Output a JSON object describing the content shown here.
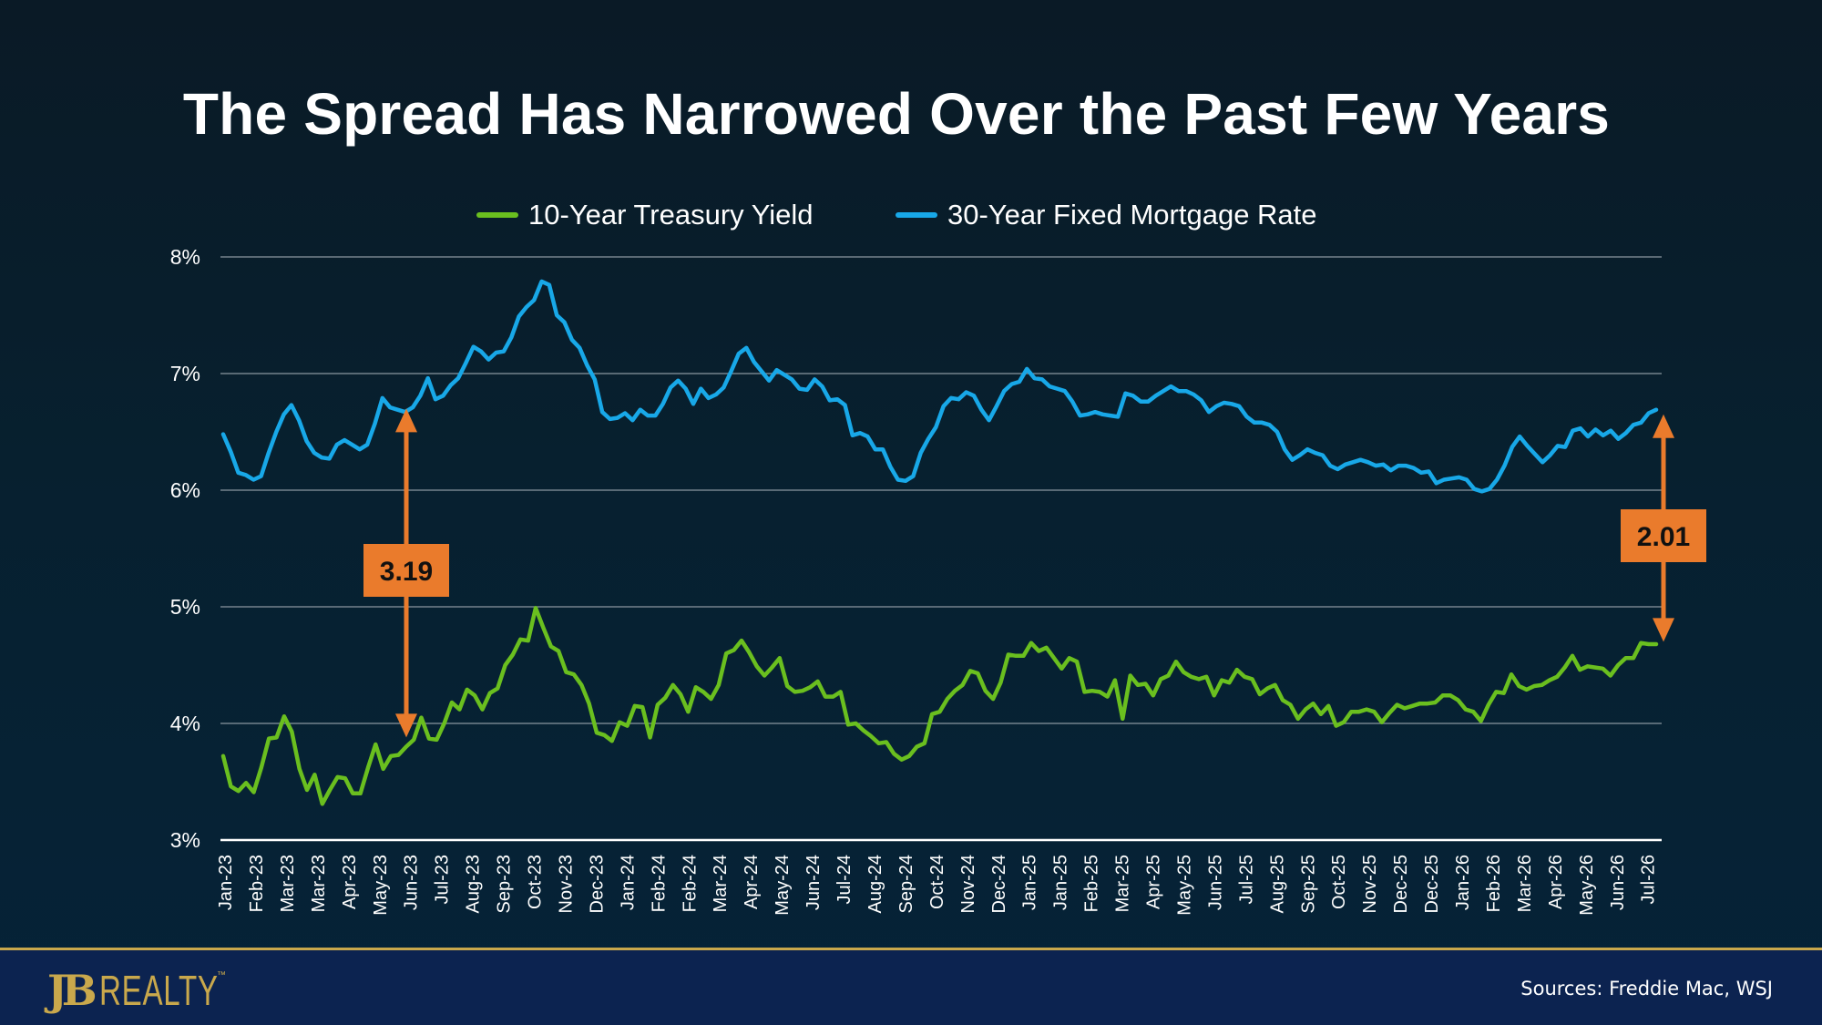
{
  "title": "The Spread Has Narrowed Over the Past Few Years",
  "footer": {
    "logo_mark": "JB",
    "logo_text": "REALTY",
    "logo_tm": "™",
    "sources": "Sources: Freddie Mac, WSJ"
  },
  "colors": {
    "treasury": "#6abf1f",
    "mortgage": "#18a8e8",
    "annotation": "#ea7b2c",
    "gridline": "#8a97a0",
    "background_top": "#0a1a26",
    "footer": "#0c2350",
    "gold": "#c9a84c"
  },
  "chart_data": {
    "type": "line",
    "title": "The Spread Has Narrowed Over the Past Few Years",
    "xlabel": "",
    "ylabel": "",
    "ylim": [
      3,
      8
    ],
    "y_ticks": [
      "3%",
      "4%",
      "5%",
      "6%",
      "7%",
      "8%"
    ],
    "y_tick_values": [
      3,
      4,
      5,
      6,
      7,
      8
    ],
    "grid": true,
    "legend_position": "top-center",
    "x_tick_labels": [
      "Jan-23",
      "Feb-23",
      "Mar-23",
      "Mar-23",
      "Apr-23",
      "May-23",
      "Jun-23",
      "Jul-23",
      "Aug-23",
      "Sep-23",
      "Oct-23",
      "Nov-23",
      "Dec-23",
      "Jan-24",
      "Feb-24",
      "Feb-24",
      "Mar-24",
      "Apr-24",
      "May-24",
      "Jun-24",
      "Jul-24",
      "Aug-24",
      "Sep-24",
      "Oct-24",
      "Nov-24",
      "Dec-24",
      "Jan-25",
      "Jan-25",
      "Feb-25",
      "Mar-25",
      "Apr-25",
      "May-25",
      "Jun-25",
      "Jul-25",
      "Aug-25",
      "Sep-25",
      "Oct-25",
      "Nov-25",
      "Dec-25",
      "Dec-25",
      "Jan-26",
      "Feb-26",
      "Mar-26",
      "Apr-26",
      "May-26",
      "Jun-26",
      "Jul-26"
    ],
    "series": [
      {
        "name": "10-Year Treasury Yield",
        "values": [
          3.72,
          3.46,
          3.42,
          3.49,
          3.41,
          3.62,
          3.87,
          3.88,
          4.06,
          3.93,
          3.61,
          3.43,
          3.56,
          3.31,
          3.43,
          3.54,
          3.53,
          3.4,
          3.4,
          3.62,
          3.82,
          3.61,
          3.72,
          3.73,
          3.8,
          3.86,
          4.05,
          3.87,
          3.86,
          4.0,
          4.18,
          4.12,
          4.29,
          4.24,
          4.12,
          4.26,
          4.3,
          4.5,
          4.59,
          4.72,
          4.71,
          4.99,
          4.82,
          4.66,
          4.62,
          4.44,
          4.42,
          4.33,
          4.17,
          3.92,
          3.9,
          3.85,
          4.01,
          3.98,
          4.15,
          4.14,
          3.88,
          4.16,
          4.22,
          4.33,
          4.25,
          4.1,
          4.31,
          4.27,
          4.21,
          4.33,
          4.6,
          4.63,
          4.71,
          4.61,
          4.49,
          4.41,
          4.48,
          4.56,
          4.32,
          4.27,
          4.28,
          4.31,
          4.36,
          4.23,
          4.23,
          4.27,
          3.99,
          4.0,
          3.94,
          3.89,
          3.83,
          3.84,
          3.74,
          3.69,
          3.72,
          3.8,
          3.83,
          4.08,
          4.1,
          4.21,
          4.28,
          4.33,
          4.45,
          4.43,
          4.28,
          4.21,
          4.35,
          4.59,
          4.58,
          4.58,
          4.69,
          4.62,
          4.65,
          4.56,
          4.47,
          4.56,
          4.53,
          4.27,
          4.28,
          4.27,
          4.23,
          4.37,
          4.04,
          4.41,
          4.33,
          4.34,
          4.24,
          4.38,
          4.41,
          4.53,
          4.44,
          4.4,
          4.38,
          4.4,
          4.24,
          4.37,
          4.35,
          4.46,
          4.4,
          4.38,
          4.25,
          4.3,
          4.33,
          4.2,
          4.16,
          4.04,
          4.12,
          4.17,
          4.08,
          4.15,
          3.98,
          4.01,
          4.1,
          4.1,
          4.12,
          4.1,
          4.01,
          4.09,
          4.16,
          4.13,
          4.15,
          4.17,
          4.17,
          4.18,
          4.24,
          4.24,
          4.2,
          4.12,
          4.1,
          4.02,
          4.16,
          4.27,
          4.26,
          4.42,
          4.32,
          4.29,
          4.32,
          4.33,
          4.37,
          4.4,
          4.48,
          4.58,
          4.46,
          4.49,
          4.48,
          4.47,
          4.41,
          4.5,
          4.56,
          4.56,
          4.69,
          4.68,
          4.68
        ]
      },
      {
        "name": "30-Year Fixed Mortgage Rate",
        "values": [
          6.48,
          6.33,
          6.15,
          6.13,
          6.09,
          6.12,
          6.32,
          6.5,
          6.65,
          6.73,
          6.6,
          6.42,
          6.32,
          6.28,
          6.27,
          6.39,
          6.43,
          6.39,
          6.35,
          6.39,
          6.57,
          6.79,
          6.71,
          6.69,
          6.67,
          6.71,
          6.81,
          6.96,
          6.78,
          6.81,
          6.9,
          6.96,
          7.09,
          7.23,
          7.19,
          7.12,
          7.18,
          7.19,
          7.31,
          7.49,
          7.57,
          7.63,
          7.79,
          7.76,
          7.5,
          7.44,
          7.29,
          7.22,
          7.07,
          6.95,
          6.67,
          6.61,
          6.62,
          6.66,
          6.6,
          6.69,
          6.64,
          6.64,
          6.74,
          6.88,
          6.94,
          6.87,
          6.74,
          6.87,
          6.79,
          6.82,
          6.88,
          7.02,
          7.17,
          7.22,
          7.1,
          7.02,
          6.94,
          7.03,
          6.99,
          6.95,
          6.87,
          6.86,
          6.95,
          6.89,
          6.77,
          6.78,
          6.73,
          6.47,
          6.49,
          6.46,
          6.35,
          6.35,
          6.2,
          6.09,
          6.08,
          6.12,
          6.32,
          6.44,
          6.54,
          6.72,
          6.79,
          6.78,
          6.84,
          6.81,
          6.69,
          6.6,
          6.72,
          6.85,
          6.91,
          6.93,
          7.04,
          6.96,
          6.95,
          6.89,
          6.87,
          6.85,
          6.76,
          6.64,
          6.65,
          6.67,
          6.65,
          6.64,
          6.63,
          6.83,
          6.81,
          6.76,
          6.76,
          6.81,
          6.85,
          6.89,
          6.85,
          6.85,
          6.82,
          6.77,
          6.67,
          6.72,
          6.75,
          6.74,
          6.72,
          6.63,
          6.58,
          6.58,
          6.56,
          6.5,
          6.35,
          6.26,
          6.3,
          6.35,
          6.32,
          6.3,
          6.21,
          6.18,
          6.22,
          6.24,
          6.26,
          6.24,
          6.21,
          6.22,
          6.17,
          6.21,
          6.21,
          6.19,
          6.15,
          6.16,
          6.06,
          6.09,
          6.1,
          6.11,
          6.09,
          6.01,
          5.99,
          6.01,
          6.09,
          6.21,
          6.37,
          6.46,
          6.38,
          6.31,
          6.24,
          6.3,
          6.38,
          6.37,
          6.51,
          6.53,
          6.46,
          6.52,
          6.47,
          6.51,
          6.44,
          6.49,
          6.56,
          6.58,
          6.66,
          6.69
        ]
      }
    ],
    "annotations": [
      {
        "label": "3.19",
        "from_value": 6.7,
        "to_value": 3.88,
        "at": "Jun-23"
      },
      {
        "label": "2.01",
        "from_value": 6.65,
        "to_value": 4.7,
        "at": "end"
      }
    ]
  }
}
